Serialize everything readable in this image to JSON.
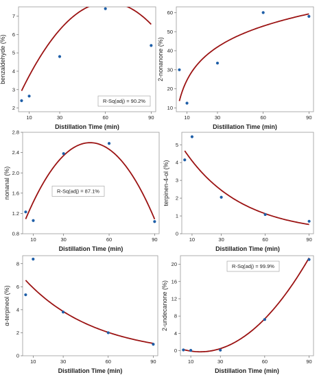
{
  "chart_data": [
    {
      "type": "scatter",
      "xlabel": "Distillation Time (min)",
      "ylabel": "benzaldehyde (%)",
      "xlim": [
        3,
        93
      ],
      "ylim": [
        1.8,
        7.5
      ],
      "xticks": [
        10,
        30,
        60,
        90
      ],
      "yticks": [
        2,
        3,
        4,
        5,
        6,
        7
      ],
      "annotation": "R-Sq(adj) =   90.2%",
      "annotation_pos": "bottom-right",
      "points": {
        "x": [
          5,
          10,
          30,
          60,
          90
        ],
        "y": [
          2.4,
          2.65,
          4.8,
          7.4,
          5.4
        ]
      },
      "fit": [
        2.05,
        0.185,
        -0.0015
      ]
    },
    {
      "type": "scatter",
      "xlabel": "Distillation Time (min)",
      "ylabel": "2-nonanone (%)",
      "xlim": [
        3,
        93
      ],
      "ylim": [
        8,
        63
      ],
      "xticks": [
        10,
        30,
        60,
        90
      ],
      "yticks": [
        10,
        20,
        30,
        40,
        50,
        60
      ],
      "annotation": "",
      "points": {
        "x": [
          5,
          10,
          30,
          60,
          90
        ],
        "y": [
          30,
          12.5,
          33.5,
          60,
          58
        ]
      },
      "fit": {
        "log": [
          -11.8,
          15.8
        ]
      }
    },
    {
      "type": "scatter",
      "xlabel": "Distillation Time (min)",
      "ylabel": "nonanal (%)",
      "xlim": [
        3,
        93
      ],
      "ylim": [
        0.8,
        2.8
      ],
      "xticks": [
        10,
        30,
        60,
        90
      ],
      "yticks": [
        0.8,
        1.2,
        1.6,
        2.0,
        2.4,
        2.8
      ],
      "ytick_labels": [
        "0.8",
        "1.2",
        "1.6",
        "2.0",
        "2.4",
        "2.8"
      ],
      "annotation": "R-Sq(adj) =   87.1%",
      "annotation_pos": "middle-left",
      "points": {
        "x": [
          5,
          10,
          30,
          60,
          90
        ],
        "y": [
          1.23,
          1.06,
          2.38,
          2.58,
          1.04
        ]
      },
      "fit": [
        0.715,
        0.0792,
        -0.000834
      ]
    },
    {
      "type": "scatter",
      "xlabel": "Distillation Time (min)",
      "ylabel": "terpinen-4-ol (%)",
      "xlim": [
        3,
        93
      ],
      "ylim": [
        0,
        5.7
      ],
      "xticks": [
        10,
        30,
        60,
        90
      ],
      "yticks": [
        0,
        1,
        2,
        3,
        4,
        5
      ],
      "annotation": "",
      "points": {
        "x": [
          5,
          10,
          30,
          60,
          90
        ],
        "y": [
          4.15,
          5.45,
          2.05,
          1.08,
          0.7
        ]
      },
      "fit": {
        "exp": [
          5.3,
          -0.0258
        ]
      }
    },
    {
      "type": "scatter",
      "xlabel": "Distillation Time (min)",
      "ylabel": "α-terpineol (%)",
      "xlim": [
        3,
        93
      ],
      "ylim": [
        0,
        8.7
      ],
      "xticks": [
        10,
        30,
        60,
        90
      ],
      "yticks": [
        0,
        2,
        4,
        6,
        8
      ],
      "annotation": "",
      "points": {
        "x": [
          5,
          10,
          30,
          60,
          90
        ],
        "y": [
          5.3,
          8.4,
          3.8,
          2.0,
          1.0
        ]
      },
      "fit": {
        "exp": [
          7.3,
          -0.0213
        ]
      }
    },
    {
      "type": "scatter",
      "xlabel": "Distillation Time (min)",
      "ylabel": "2-undecanone (%)",
      "xlim": [
        3,
        93
      ],
      "ylim": [
        -1.2,
        22
      ],
      "xticks": [
        10,
        30,
        60,
        90
      ],
      "yticks": [
        0,
        4,
        8,
        12,
        16,
        20
      ],
      "annotation": "R-Sq(adj) =   99.9%",
      "annotation_pos": "top-left",
      "points": {
        "x": [
          5,
          10,
          30,
          60,
          90
        ],
        "y": [
          0.15,
          0.05,
          0.1,
          7.2,
          21.1
        ]
      },
      "fit": [
        0.8,
        -0.132,
        0.00402
      ]
    }
  ],
  "colors": {
    "points": "#1f5fa8",
    "fit": "#9b1212"
  }
}
